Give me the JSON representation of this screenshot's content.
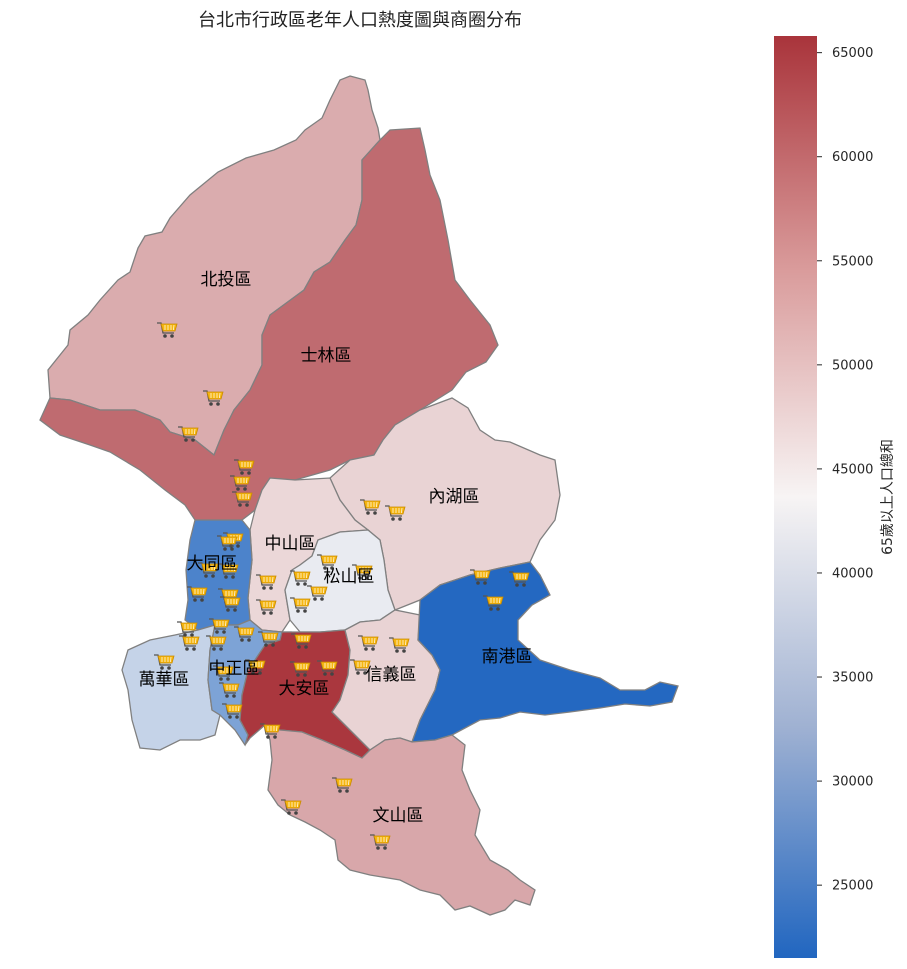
{
  "title": "台北市行政區老年人口熱度圖與商圈分布",
  "colorbar": {
    "label": "65歲以上人口總和",
    "min": 21500,
    "max": 65800,
    "ticks": [
      "25000",
      "30000",
      "35000",
      "40000",
      "45000",
      "50000",
      "55000",
      "60000",
      "65000"
    ],
    "colors": {
      "low": "#2166c0",
      "mid": "#f7f4f4",
      "high": "#a9343b"
    }
  },
  "districts": [
    {
      "id": "beitou",
      "name": "北投區",
      "value": 52000
    },
    {
      "id": "shilin",
      "name": "士林區",
      "value": 59500
    },
    {
      "id": "neihu",
      "name": "內湖區",
      "value": 47500
    },
    {
      "id": "zhongshan",
      "name": "中山區",
      "value": 47000
    },
    {
      "id": "songshan",
      "name": "松山區",
      "value": 42200
    },
    {
      "id": "datong",
      "name": "大同區",
      "value": 26000
    },
    {
      "id": "wanhua",
      "name": "萬華區",
      "value": 38500
    },
    {
      "id": "zhongzheng",
      "name": "中正區",
      "value": 31000
    },
    {
      "id": "daan",
      "name": "大安區",
      "value": 65500
    },
    {
      "id": "xinyi",
      "name": "信義區",
      "value": 47500
    },
    {
      "id": "nangang",
      "name": "南港區",
      "value": 21800
    },
    {
      "id": "wenshan",
      "name": "文山區",
      "value": 52500
    }
  ],
  "shopping_areas": {
    "icon": "shopping-cart-icon",
    "count": 44
  }
}
